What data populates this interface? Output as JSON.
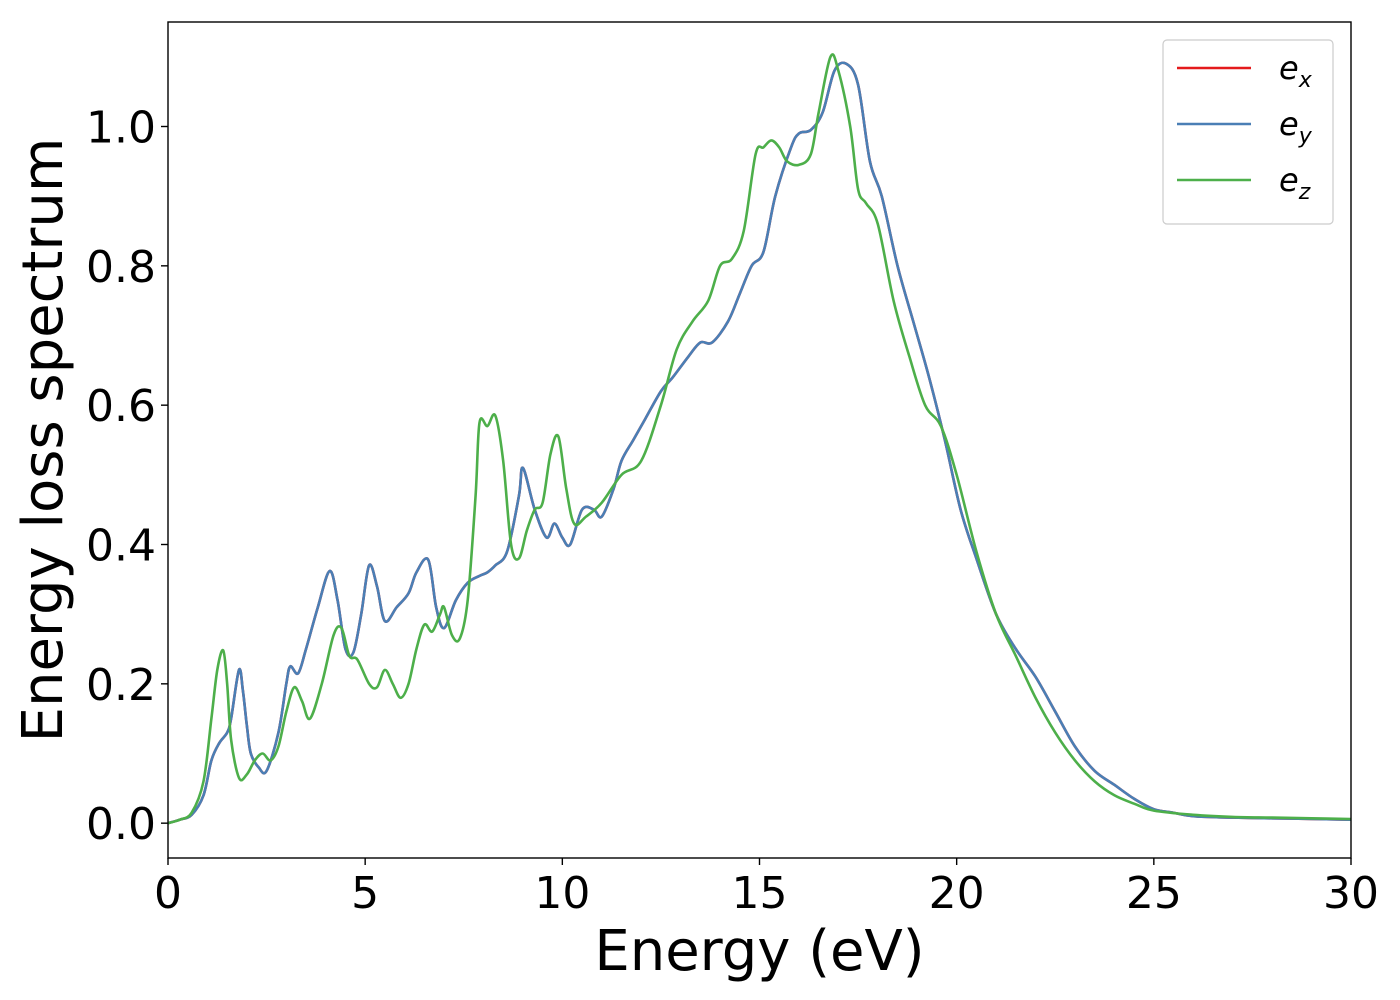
{
  "chart_data": {
    "type": "line",
    "title": "",
    "xlabel": "Energy (eV)",
    "ylabel": "Energy loss spectrum",
    "xlim": [
      0,
      30
    ],
    "ylim": [
      -0.05,
      1.15
    ],
    "xticks": [
      0,
      5,
      10,
      15,
      20,
      25,
      30
    ],
    "xtick_labels": [
      "0",
      "5",
      "10",
      "15",
      "20",
      "25",
      "30"
    ],
    "yticks": [
      0.0,
      0.2,
      0.4,
      0.6,
      0.8,
      1.0
    ],
    "ytick_labels": [
      "0.0",
      "0.2",
      "0.4",
      "0.6",
      "0.8",
      "1.0"
    ],
    "grid": false,
    "legend_position": "top-right",
    "series": [
      {
        "name": "e_x",
        "legend_base": "e",
        "legend_sub": "x",
        "color": "#e41a1c",
        "x": [
          0,
          0.3,
          0.6,
          0.9,
          1.1,
          1.3,
          1.5,
          1.6,
          1.8,
          1.9,
          2.0,
          2.1,
          2.3,
          2.5,
          2.8,
          3.0,
          3.1,
          3.3,
          3.5,
          3.8,
          4.1,
          4.3,
          4.5,
          4.7,
          4.9,
          5.1,
          5.3,
          5.5,
          5.8,
          6.1,
          6.3,
          6.6,
          6.8,
          7.0,
          7.3,
          7.6,
          7.9,
          8.1,
          8.3,
          8.6,
          8.9,
          9.0,
          9.3,
          9.6,
          9.8,
          10.0,
          10.2,
          10.5,
          10.8,
          11.0,
          11.3,
          11.5,
          11.8,
          12.1,
          12.5,
          12.8,
          13.2,
          13.5,
          13.8,
          14.2,
          14.5,
          14.8,
          15.1,
          15.4,
          15.8,
          16.0,
          16.3,
          16.6,
          16.9,
          17.2,
          17.5,
          17.8,
          18.1,
          18.5,
          18.9,
          19.3,
          19.7,
          20.1,
          20.5,
          21.0,
          21.5,
          22.0,
          22.5,
          23.0,
          23.5,
          24.0,
          24.5,
          25.0,
          25.5,
          26.0,
          27.0,
          28.0,
          29.0,
          30.0
        ],
        "y": [
          0.0,
          0.005,
          0.012,
          0.04,
          0.09,
          0.115,
          0.13,
          0.15,
          0.22,
          0.19,
          0.14,
          0.1,
          0.08,
          0.075,
          0.13,
          0.2,
          0.225,
          0.215,
          0.25,
          0.31,
          0.362,
          0.32,
          0.25,
          0.245,
          0.3,
          0.37,
          0.34,
          0.29,
          0.31,
          0.33,
          0.36,
          0.378,
          0.31,
          0.28,
          0.32,
          0.345,
          0.355,
          0.36,
          0.37,
          0.39,
          0.47,
          0.51,
          0.45,
          0.41,
          0.43,
          0.41,
          0.4,
          0.45,
          0.45,
          0.44,
          0.48,
          0.52,
          0.55,
          0.58,
          0.62,
          0.64,
          0.67,
          0.69,
          0.69,
          0.72,
          0.76,
          0.8,
          0.82,
          0.9,
          0.97,
          0.99,
          0.995,
          1.02,
          1.08,
          1.09,
          1.06,
          0.95,
          0.9,
          0.8,
          0.72,
          0.64,
          0.55,
          0.45,
          0.38,
          0.3,
          0.25,
          0.21,
          0.16,
          0.11,
          0.075,
          0.055,
          0.035,
          0.02,
          0.015,
          0.01,
          0.008,
          0.007,
          0.006,
          0.005
        ]
      },
      {
        "name": "e_y",
        "legend_base": "e",
        "legend_sub": "y",
        "color": "#4a7fb5",
        "x": [
          0,
          0.3,
          0.6,
          0.9,
          1.1,
          1.3,
          1.5,
          1.6,
          1.8,
          1.9,
          2.0,
          2.1,
          2.3,
          2.5,
          2.8,
          3.0,
          3.1,
          3.3,
          3.5,
          3.8,
          4.1,
          4.3,
          4.5,
          4.7,
          4.9,
          5.1,
          5.3,
          5.5,
          5.8,
          6.1,
          6.3,
          6.6,
          6.8,
          7.0,
          7.3,
          7.6,
          7.9,
          8.1,
          8.3,
          8.6,
          8.9,
          9.0,
          9.3,
          9.6,
          9.8,
          10.0,
          10.2,
          10.5,
          10.8,
          11.0,
          11.3,
          11.5,
          11.8,
          12.1,
          12.5,
          12.8,
          13.2,
          13.5,
          13.8,
          14.2,
          14.5,
          14.8,
          15.1,
          15.4,
          15.8,
          16.0,
          16.3,
          16.6,
          16.9,
          17.2,
          17.5,
          17.8,
          18.1,
          18.5,
          18.9,
          19.3,
          19.7,
          20.1,
          20.5,
          21.0,
          21.5,
          22.0,
          22.5,
          23.0,
          23.5,
          24.0,
          24.5,
          25.0,
          25.5,
          26.0,
          27.0,
          28.0,
          29.0,
          30.0
        ],
        "y": [
          0.0,
          0.005,
          0.012,
          0.04,
          0.09,
          0.115,
          0.13,
          0.15,
          0.22,
          0.19,
          0.14,
          0.1,
          0.08,
          0.075,
          0.13,
          0.2,
          0.225,
          0.215,
          0.25,
          0.31,
          0.362,
          0.32,
          0.25,
          0.245,
          0.3,
          0.37,
          0.34,
          0.29,
          0.31,
          0.33,
          0.36,
          0.378,
          0.31,
          0.28,
          0.32,
          0.345,
          0.355,
          0.36,
          0.37,
          0.39,
          0.47,
          0.51,
          0.45,
          0.41,
          0.43,
          0.41,
          0.4,
          0.45,
          0.45,
          0.44,
          0.48,
          0.52,
          0.55,
          0.58,
          0.62,
          0.64,
          0.67,
          0.69,
          0.69,
          0.72,
          0.76,
          0.8,
          0.82,
          0.9,
          0.97,
          0.99,
          0.995,
          1.02,
          1.08,
          1.09,
          1.06,
          0.95,
          0.9,
          0.8,
          0.72,
          0.64,
          0.55,
          0.45,
          0.38,
          0.3,
          0.25,
          0.21,
          0.16,
          0.11,
          0.075,
          0.055,
          0.035,
          0.02,
          0.015,
          0.01,
          0.008,
          0.007,
          0.006,
          0.005
        ]
      },
      {
        "name": "e_z",
        "legend_base": "e",
        "legend_sub": "z",
        "color": "#4daf4a",
        "x": [
          0,
          0.3,
          0.6,
          0.9,
          1.1,
          1.25,
          1.4,
          1.5,
          1.6,
          1.8,
          2.0,
          2.2,
          2.4,
          2.6,
          2.8,
          3.0,
          3.2,
          3.4,
          3.6,
          3.9,
          4.2,
          4.4,
          4.6,
          4.8,
          5.1,
          5.3,
          5.5,
          5.7,
          5.9,
          6.1,
          6.3,
          6.5,
          6.7,
          6.9,
          7.0,
          7.2,
          7.4,
          7.6,
          7.8,
          7.9,
          8.1,
          8.3,
          8.5,
          8.7,
          8.9,
          9.1,
          9.3,
          9.5,
          9.7,
          9.9,
          10.1,
          10.3,
          10.6,
          11.0,
          11.5,
          12.0,
          12.5,
          12.9,
          13.3,
          13.7,
          14.0,
          14.3,
          14.6,
          14.9,
          15.1,
          15.3,
          15.5,
          15.7,
          16.0,
          16.3,
          16.5,
          16.8,
          17.0,
          17.3,
          17.5,
          17.7,
          18.0,
          18.4,
          18.8,
          19.2,
          19.6,
          20.0,
          20.5,
          21.0,
          21.5,
          22.0,
          22.5,
          23.0,
          23.5,
          24.0,
          24.5,
          25.0,
          26.0,
          27.0,
          28.0,
          29.0,
          30.0
        ],
        "y": [
          0.0,
          0.005,
          0.015,
          0.06,
          0.15,
          0.22,
          0.248,
          0.2,
          0.12,
          0.065,
          0.07,
          0.09,
          0.1,
          0.09,
          0.11,
          0.16,
          0.195,
          0.175,
          0.15,
          0.2,
          0.27,
          0.28,
          0.24,
          0.235,
          0.2,
          0.195,
          0.22,
          0.2,
          0.18,
          0.2,
          0.25,
          0.285,
          0.275,
          0.3,
          0.31,
          0.27,
          0.265,
          0.32,
          0.47,
          0.575,
          0.57,
          0.585,
          0.52,
          0.4,
          0.38,
          0.42,
          0.45,
          0.46,
          0.53,
          0.555,
          0.48,
          0.43,
          0.44,
          0.46,
          0.5,
          0.52,
          0.6,
          0.68,
          0.72,
          0.75,
          0.8,
          0.81,
          0.85,
          0.96,
          0.97,
          0.98,
          0.97,
          0.95,
          0.945,
          0.96,
          1.02,
          1.1,
          1.08,
          1.0,
          0.91,
          0.89,
          0.86,
          0.75,
          0.67,
          0.6,
          0.57,
          0.5,
          0.39,
          0.3,
          0.24,
          0.18,
          0.13,
          0.09,
          0.06,
          0.04,
          0.028,
          0.018,
          0.012,
          0.009,
          0.008,
          0.007,
          0.006
        ]
      }
    ]
  }
}
